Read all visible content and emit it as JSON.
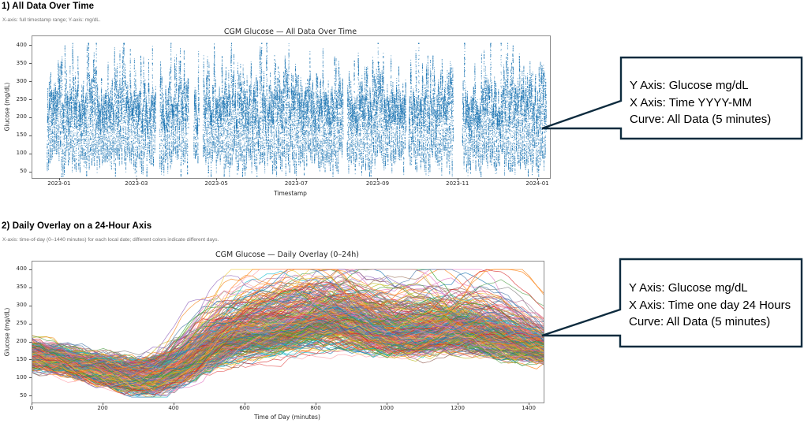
{
  "page": {
    "background": "#ffffff"
  },
  "sections": [
    {
      "heading": "1) All Data Over Time",
      "note": "X-axis: full timestamp range; Y-axis: mg/dL.",
      "callout": {
        "lines": [
          "Y Axis: Glucose mg/dL",
          "X Axis: Time YYYY-MM",
          "Curve: All Data (5 minutes)"
        ],
        "border_color": "#0d2b3e"
      }
    },
    {
      "heading": "2) Daily Overlay on a 24-Hour Axis",
      "note": "X-axis: time-of-day (0–1440 minutes) for each local date; different colors indicate different days.",
      "callout": {
        "lines": [
          "Y Axis: Glucose mg/dL",
          "X Axis: Time one day 24 Hours",
          "Curve: All Data (5 minutes)"
        ],
        "border_color": "#0d2b3e"
      }
    }
  ],
  "chart_data": [
    {
      "type": "scatter",
      "title": "CGM Glucose — All Data Over Time",
      "xlabel": "Timestamp",
      "ylabel": "Glucose (mg/dL)",
      "x_ticks": [
        "2023-01",
        "2023-03",
        "2023-05",
        "2023-07",
        "2023-09",
        "2023-11",
        "2024-01"
      ],
      "x_tick_days": [
        0,
        59,
        120,
        181,
        243,
        304,
        365
      ],
      "x_range_days": [
        -21,
        374
      ],
      "y_ticks": [
        50,
        100,
        150,
        200,
        250,
        300,
        350,
        400
      ],
      "ylim": [
        34,
        427
      ],
      "grid": false,
      "legend": "none",
      "point_color": "#1f77b4",
      "series_summary": {
        "description": "One year (2023-01 through 2024-01) of CGM glucose readings sampled every 5 minutes, drawn as dense blue vertical streaks; values mostly 100–260 mg/dL with daily spikes to ~400 and troughs to ~40; a few short multi-day gaps appear as white bands.",
        "n_days": 365,
        "sample_interval_minutes": 5,
        "value_range_mgdl": [
          40,
          408
        ],
        "dense_band_mgdl": [
          100,
          260
        ],
        "gap_count": 7
      }
    },
    {
      "type": "line",
      "title": "CGM Glucose — Daily Overlay (0–24h)",
      "xlabel": "Time of Day (minutes)",
      "ylabel": "Glucose (mg/dL)",
      "x_ticks": [
        0,
        200,
        400,
        600,
        800,
        1000,
        1200,
        1400
      ],
      "xlim": [
        0,
        1440
      ],
      "y_ticks": [
        50,
        100,
        150,
        200,
        250,
        300,
        350,
        400
      ],
      "ylim": [
        33,
        424
      ],
      "grid": false,
      "legend": "none",
      "palette": [
        "#1f77b4",
        "#ff7f0e",
        "#2ca02c",
        "#d62728",
        "#9467bd",
        "#8c564b",
        "#e377c2",
        "#7f7f7f",
        "#bcbd22",
        "#17becf",
        "#e45756",
        "#54a24b",
        "#eeca3b",
        "#b279a2",
        "#ff9da6",
        "#9d755d",
        "#4c78a8",
        "#f58518"
      ],
      "series_summary": {
        "description": "365 daily glucose curves overlaid on a 0–1440 minute axis, one color per day; overnight band ~100–250 mg/dL dipping near minutes 300–400, broad post-meal elevations between minutes 600–900 and in the late evening reaching 300–400 mg/dL.",
        "n_days": 365,
        "sample_interval_minutes": 5,
        "value_range_mgdl": [
          48,
          402
        ]
      }
    }
  ]
}
